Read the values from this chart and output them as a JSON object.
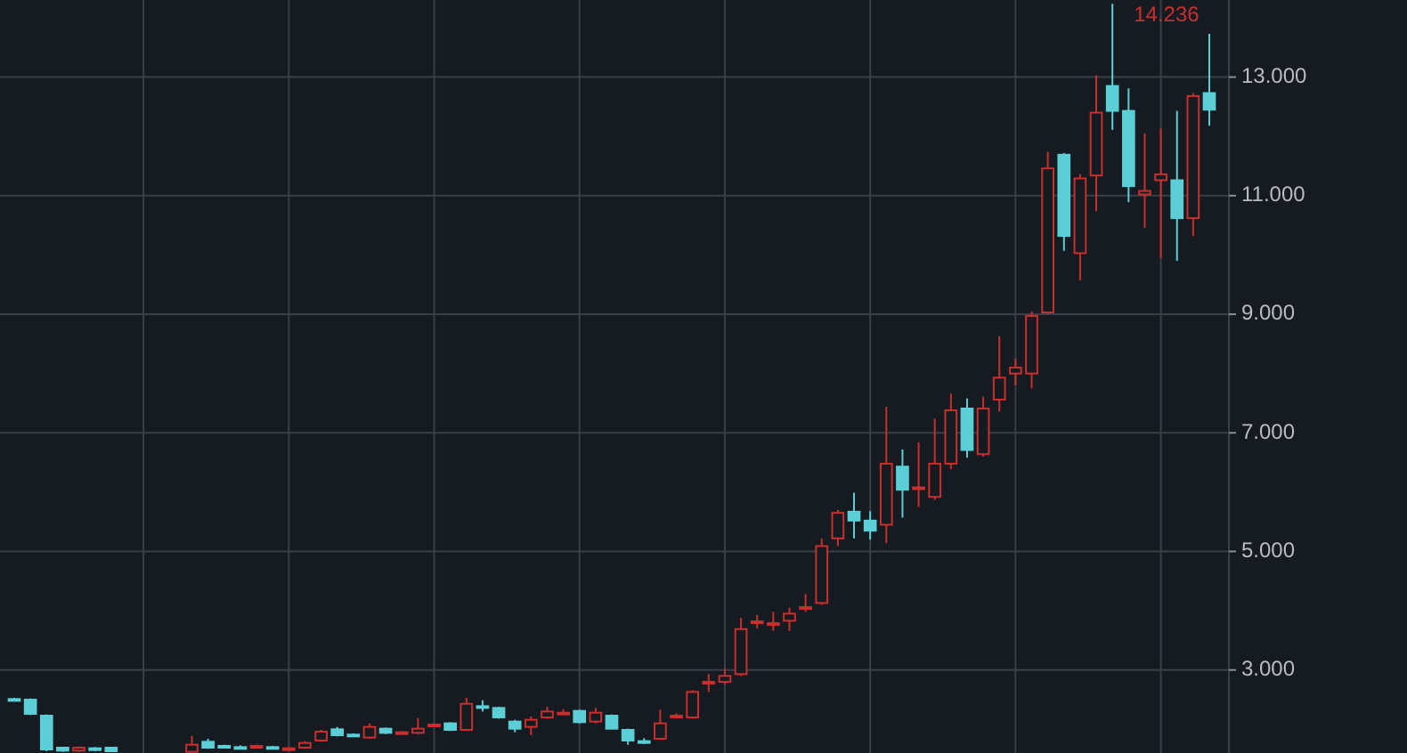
{
  "chart_data": {
    "type": "candlestick",
    "categories": [
      null,
      null,
      null,
      null,
      null,
      null,
      null,
      null,
      null,
      null,
      null,
      null,
      null,
      null,
      null,
      null,
      null,
      null,
      null,
      null,
      null,
      null,
      null,
      null,
      null,
      null,
      null,
      null,
      null,
      null,
      null,
      null,
      null,
      null,
      null,
      null,
      null,
      null,
      null,
      null,
      null,
      null,
      null,
      null,
      null,
      null,
      null,
      null,
      null,
      null,
      null,
      null,
      null,
      null,
      null,
      null,
      null,
      null,
      null,
      null,
      null,
      null,
      null,
      null,
      null,
      null,
      null,
      null,
      null,
      null,
      null,
      null,
      null,
      null,
      null
    ],
    "ohlc": [
      [
        2.51,
        2.53,
        2.48,
        2.5
      ],
      [
        2.5,
        2.52,
        2.24,
        2.26
      ],
      [
        2.23,
        2.25,
        1.63,
        1.66
      ],
      [
        1.69,
        1.7,
        1.62,
        1.64
      ],
      [
        1.64,
        1.71,
        1.62,
        1.69
      ],
      [
        1.68,
        1.7,
        1.63,
        1.65
      ],
      [
        1.69,
        1.7,
        1.62,
        1.63
      ],
      null,
      null,
      null,
      null,
      [
        1.62,
        1.89,
        1.61,
        1.74
      ],
      [
        1.79,
        1.84,
        1.67,
        1.69
      ],
      [
        1.72,
        1.74,
        1.69,
        1.71
      ],
      [
        1.7,
        1.73,
        1.66,
        1.69
      ],
      [
        1.71,
        1.74,
        1.69,
        1.72
      ],
      [
        1.7,
        1.72,
        1.67,
        1.69
      ],
      [
        1.66,
        1.7,
        1.64,
        1.68
      ],
      [
        1.69,
        1.8,
        1.67,
        1.77
      ],
      [
        1.81,
        1.99,
        1.79,
        1.96
      ],
      [
        2.0,
        2.04,
        1.88,
        1.9
      ],
      [
        1.91,
        1.93,
        1.88,
        1.9
      ],
      [
        1.86,
        2.1,
        1.84,
        2.04
      ],
      [
        2.01,
        2.03,
        1.92,
        1.94
      ],
      [
        1.94,
        1.97,
        1.92,
        1.95
      ],
      [
        1.94,
        2.19,
        1.92,
        2.01
      ],
      [
        2.07,
        2.1,
        2.06,
        2.08
      ],
      [
        2.1,
        2.12,
        1.97,
        1.99
      ],
      [
        1.99,
        2.53,
        1.97,
        2.43
      ],
      [
        2.39,
        2.49,
        2.3,
        2.38
      ],
      [
        2.36,
        2.38,
        2.18,
        2.2
      ],
      [
        2.13,
        2.16,
        1.95,
        2.01
      ],
      [
        2.04,
        2.22,
        1.9,
        2.16
      ],
      [
        2.2,
        2.38,
        2.18,
        2.3
      ],
      [
        2.27,
        2.34,
        2.25,
        2.28
      ],
      [
        2.31,
        2.33,
        2.1,
        2.12
      ],
      [
        2.13,
        2.36,
        2.1,
        2.28
      ],
      [
        2.23,
        2.25,
        2.0,
        2.01
      ],
      [
        1.99,
        2.01,
        1.74,
        1.81
      ],
      [
        1.8,
        1.85,
        1.75,
        1.79
      ],
      [
        1.84,
        2.33,
        1.82,
        2.1
      ],
      [
        2.22,
        2.27,
        2.2,
        2.23
      ],
      [
        2.2,
        2.66,
        2.18,
        2.63
      ],
      [
        2.77,
        2.93,
        2.63,
        2.8
      ],
      [
        2.8,
        3.03,
        2.76,
        2.9
      ],
      [
        2.93,
        3.88,
        2.9,
        3.69
      ],
      [
        3.8,
        3.93,
        3.7,
        3.82
      ],
      [
        3.77,
        3.98,
        3.66,
        3.79
      ],
      [
        3.83,
        4.05,
        3.66,
        3.95
      ],
      [
        4.04,
        4.28,
        3.98,
        4.06
      ],
      [
        4.13,
        5.22,
        4.1,
        5.09
      ],
      [
        5.22,
        5.7,
        5.09,
        5.65
      ],
      [
        5.67,
        5.99,
        5.22,
        5.52
      ],
      [
        5.52,
        5.68,
        5.2,
        5.35
      ],
      [
        5.45,
        7.44,
        5.14,
        6.48
      ],
      [
        6.43,
        6.72,
        5.57,
        6.04
      ],
      [
        6.05,
        6.84,
        5.75,
        6.08
      ],
      [
        5.92,
        7.24,
        5.87,
        6.48
      ],
      [
        6.48,
        7.66,
        6.39,
        7.38
      ],
      [
        7.41,
        7.58,
        6.58,
        6.71
      ],
      [
        6.64,
        7.61,
        6.6,
        7.41
      ],
      [
        7.56,
        8.63,
        7.36,
        7.93
      ],
      [
        8.0,
        8.25,
        7.8,
        8.1
      ],
      [
        8.0,
        9.05,
        7.75,
        8.97
      ],
      [
        9.03,
        11.74,
        9.0,
        11.46
      ],
      [
        11.69,
        11.72,
        10.07,
        10.32
      ],
      [
        10.03,
        11.36,
        9.57,
        11.29
      ],
      [
        11.34,
        13.03,
        10.74,
        12.4
      ],
      [
        12.85,
        14.236,
        12.11,
        12.43
      ],
      [
        12.43,
        12.81,
        10.89,
        11.16
      ],
      [
        11.02,
        12.05,
        10.46,
        11.08
      ],
      [
        11.26,
        12.13,
        9.95,
        11.36
      ],
      [
        11.26,
        12.43,
        9.9,
        10.62
      ],
      [
        10.62,
        12.73,
        10.32,
        12.68
      ],
      [
        12.73,
        13.73,
        12.18,
        12.45
      ]
    ],
    "ylim": [
      1.6,
      14.3
    ],
    "yticks": [
      {
        "value": 3,
        "label": "3.000"
      },
      {
        "value": 5,
        "label": "5.000"
      },
      {
        "value": 7,
        "label": "7.000"
      },
      {
        "value": 9,
        "label": "9.000"
      },
      {
        "value": 11,
        "label": "11.000"
      },
      {
        "value": 13,
        "label": "13.000"
      }
    ],
    "grid": true,
    "annotations": [
      "14.236"
    ]
  }
}
